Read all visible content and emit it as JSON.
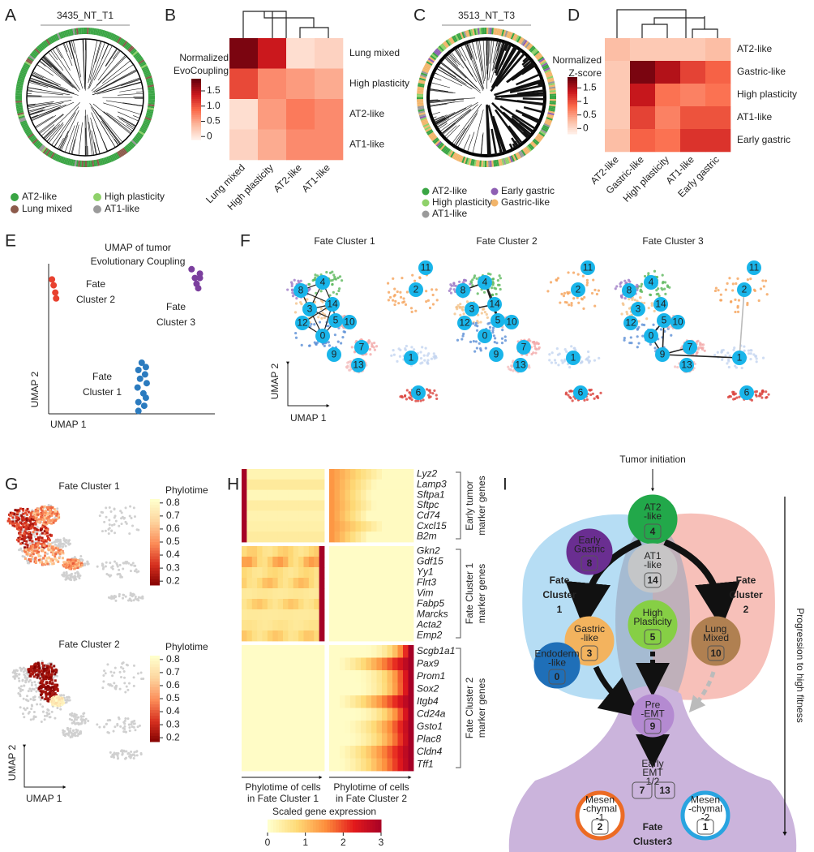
{
  "panel_labels": [
    "A",
    "B",
    "C",
    "D",
    "E",
    "F",
    "G",
    "H",
    "I"
  ],
  "A": {
    "title": "3435_NT_T1",
    "legend": [
      {
        "name": "AT2-like",
        "color": "#3aa544"
      },
      {
        "name": "High plasticity",
        "color": "#8fd16a"
      },
      {
        "name": "Lung mixed",
        "color": "#8c5a4b"
      },
      {
        "name": "AT1-like",
        "color": "#9a9a9a"
      }
    ]
  },
  "B": {
    "type": "heatmap",
    "title_lines": [
      "Normalized",
      "EvoCoupling"
    ],
    "columns": [
      "Lung mixed",
      "High plasticity",
      "AT2-like",
      "AT1-like"
    ],
    "rows": [
      "Lung mixed",
      "High plasticity",
      "AT2-like",
      "AT1-like"
    ],
    "values": [
      [
        1.8,
        1.4,
        0.1,
        0.2
      ],
      [
        1.1,
        0.7,
        0.6,
        0.5
      ],
      [
        0.1,
        0.6,
        0.8,
        0.7
      ],
      [
        0.2,
        0.5,
        0.7,
        0.7
      ]
    ],
    "clim": [
      -0.1,
      1.9
    ],
    "cticks": [
      0,
      0.5,
      {
        "value": 1,
        "label": "1.0"
      },
      1.5
    ]
  },
  "C": {
    "title": "3513_NT_T3",
    "legend": [
      {
        "name": "AT2-like",
        "color": "#3aa544"
      },
      {
        "name": "Early gastric",
        "color": "#8e5fb3"
      },
      {
        "name": "High plasticity",
        "color": "#8fd16a"
      },
      {
        "name": "Gastric-like",
        "color": "#f2b56b"
      },
      {
        "name": "AT1-like",
        "color": "#9a9a9a"
      }
    ]
  },
  "D": {
    "type": "heatmap",
    "title_lines": [
      "Normalized",
      "Z-score"
    ],
    "columns": [
      "AT2-like",
      "Gastric-like",
      "High plasticity",
      "AT1-like",
      "Early gastric"
    ],
    "rows": [
      "AT2-like",
      "Gastric-like",
      "High plasticity",
      "AT1-like",
      "Early gastric"
    ],
    "values": [
      [
        0.3,
        0.2,
        0.2,
        0.2,
        0.3
      ],
      [
        0.2,
        1.8,
        1.5,
        1.1,
        0.9
      ],
      [
        0.2,
        1.4,
        0.8,
        0.7,
        0.8
      ],
      [
        0.2,
        1.1,
        0.7,
        1.0,
        1.0
      ],
      [
        0.3,
        0.9,
        0.8,
        1.2,
        1.2
      ]
    ],
    "clim": [
      -0.2,
      1.9
    ],
    "cticks": [
      0,
      0.5,
      1,
      1.5
    ]
  },
  "E": {
    "type": "scatter",
    "title_lines": [
      "UMAP of tumor",
      "Evolutionary Coupling"
    ],
    "xlabel": "UMAP 1",
    "ylabel": "UMAP 2",
    "xlim": [
      0,
      10
    ],
    "ylim": [
      0,
      10
    ],
    "clusters": [
      {
        "name_lines": [
          "Fate",
          "Cluster 2"
        ],
        "color": "#e8412f",
        "x": [
          0.2,
          0.3,
          0.4,
          0.45
        ],
        "y": [
          9.2,
          8.8,
          8.3,
          7.9
        ]
      },
      {
        "name_lines": [
          "Fate",
          "Cluster 3"
        ],
        "color": "#7b3f9e",
        "x": [
          8.6,
          9.1,
          8.8,
          9.1,
          8.9,
          9.0
        ],
        "y": [
          9.9,
          9.6,
          9.3,
          9.3,
          8.9,
          8.6
        ]
      },
      {
        "name_lines": [
          "Fate",
          "Cluster 1"
        ],
        "color": "#2b7bbf",
        "x": [
          5.6,
          5.85,
          5.4,
          5.8,
          5.5,
          5.9,
          5.35,
          5.7,
          5.85,
          5.4,
          5.75,
          5.4
        ],
        "y": [
          3.5,
          3.2,
          3.0,
          2.7,
          2.4,
          2.1,
          1.8,
          1.4,
          1.1,
          0.8,
          0.55,
          0.2
        ]
      }
    ]
  },
  "F": {
    "panels": [
      {
        "title": "Fate Cluster 1",
        "color": "#2b7bbf"
      },
      {
        "title": "Fate Cluster 2",
        "color": "#d92b2b"
      },
      {
        "title": "Fate Cluster 3",
        "color": "#7b3f9e"
      }
    ],
    "nodes": [
      11,
      2,
      8,
      4,
      3,
      14,
      5,
      10,
      12,
      0,
      7,
      9,
      1,
      13,
      6
    ],
    "xlabel": "UMAP 1",
    "ylabel": "UMAP 2"
  },
  "G": {
    "panels": [
      {
        "title": "Fate Cluster 1",
        "color": "#2b7bbf"
      },
      {
        "title": "Fate Cluster 2",
        "color": "#d92b2b"
      }
    ],
    "colorbar_title": "Phylotime",
    "clim": [
      0.17,
      0.83
    ],
    "cticks": [
      0.2,
      0.3,
      0.4,
      0.5,
      0.6,
      0.7,
      0.8
    ],
    "xlabel": "UMAP 1",
    "ylabel": "UMAP 2"
  },
  "H": {
    "groups": [
      {
        "label_lines": [
          "Early tumor",
          "marker genes"
        ],
        "color": "#9a9a9a",
        "genes": [
          "Lyz2",
          "Lamp3",
          "Sftpa1",
          "Sftpc",
          "Cd74",
          "Cxcl15",
          "B2m"
        ]
      },
      {
        "label_lines": [
          "Fate Cluster 1",
          "marker genes"
        ],
        "color": "#2b7bbf",
        "genes": [
          "Gkn2",
          "Gdf15",
          "Yy1",
          "Flrt3",
          "Vim",
          "Fabp5",
          "Marcks",
          "Acta2",
          "Emp2"
        ]
      },
      {
        "label_lines": [
          "Fate Cluster 2",
          "marker genes"
        ],
        "color": "#d92b2b",
        "genes": [
          "Scgb1a1",
          "Pax9",
          "Prom1",
          "Sox2",
          "Itgb4",
          "Cd24a",
          "Gsto1",
          "Plac8",
          "Cldn4",
          "Tff1"
        ]
      }
    ],
    "x_labels": [
      [
        "Phylotime of cells",
        "in Fate Cluster 1"
      ],
      [
        "Phylotime of cells",
        "in Fate Cluster 2"
      ]
    ],
    "colorbar_title": "Scaled gene expression",
    "clim": [
      0,
      3
    ],
    "cticks": [
      0,
      1,
      2,
      3
    ]
  },
  "I": {
    "top_label": "Tumor initiation",
    "side_label": "Progression to high fitness",
    "nodes": [
      {
        "lines": [
          "AT2",
          "-like"
        ],
        "number": 4,
        "color": "#22a84a"
      },
      {
        "lines": [
          "Early",
          "Gastric"
        ],
        "number": 8,
        "color": "#6a2e91"
      },
      {
        "lines": [
          "AT1",
          "-like"
        ],
        "number": 14,
        "color": "#c8c8c8"
      },
      {
        "lines": [
          "High",
          "Plasticity"
        ],
        "number": 5,
        "color": "#86cf45"
      },
      {
        "lines": [
          "Gastric",
          "-like"
        ],
        "number": 3,
        "color": "#f3b35e"
      },
      {
        "lines": [
          "Lung",
          "Mixed"
        ],
        "number": 10,
        "color": "#b08051"
      },
      {
        "lines": [
          "Endoderm",
          "-like"
        ],
        "number": 0,
        "color": "#1f6fb8"
      },
      {
        "lines": [
          "Pre",
          "-EMT"
        ],
        "number": 9,
        "color": "#b48ad1"
      },
      {
        "lines": [
          "Mesen",
          "-chymal",
          "-1"
        ],
        "number": 2,
        "color": "#ec6b24",
        "style": "ring"
      },
      {
        "lines": [
          "Mesen",
          "-chymal",
          "-2"
        ],
        "number": 1,
        "color": "#29a4e0",
        "style": "ring"
      }
    ],
    "early_emt": {
      "lines": [
        "Early",
        "EMT",
        "1/2"
      ],
      "numbers": [
        7,
        13
      ]
    },
    "fate_labels": [
      [
        "Fate",
        "Cluster",
        "1"
      ],
      [
        "Fate",
        "Cluster",
        "2"
      ],
      [
        "Fate",
        "Cluster3"
      ]
    ]
  }
}
